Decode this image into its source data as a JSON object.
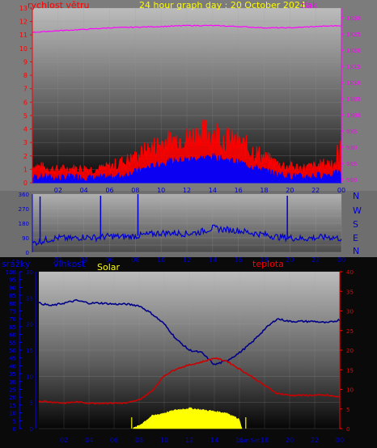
{
  "header": {
    "wind_label": "rychlost větru",
    "title": "24 hour graph day : 20 October 2024",
    "pressure_label": "tlak"
  },
  "lower_labels": {
    "rain": "srážky",
    "humidity": "vlhkost",
    "solar": "Solar",
    "temperature": "teplota"
  },
  "compass": [
    "N",
    "W",
    "S",
    "E",
    "N"
  ],
  "colors": {
    "wind_speed": "#ff0000",
    "wind_avg": "#0000ff",
    "pressure": "#ff00ff",
    "direction": "#0000cc",
    "humidity": "#00008b",
    "temperature": "#cc0000",
    "solar": "#ffff00",
    "text_red": "#ff0000",
    "text_yellow": "#ffff00",
    "text_blue": "#0000ff",
    "text_magenta": "#ff00ff"
  },
  "chart_data": [
    {
      "type": "line",
      "x_ticks": [
        "02",
        "04",
        "06",
        "08",
        "10",
        "12",
        "14",
        "16",
        "18",
        "20",
        "22",
        "00"
      ],
      "x_range": [
        0,
        24
      ],
      "left_axis": {
        "ticks": [
          0,
          1,
          2,
          3,
          4,
          5,
          6,
          7,
          8,
          9,
          10,
          11,
          12,
          13
        ],
        "ylim": [
          0,
          13
        ]
      },
      "right_axis": {
        "ticks": [
          980,
          985,
          990,
          995,
          1000,
          1005,
          1010,
          1015,
          1020,
          1025,
          1030
        ],
        "ylim": [
          979,
          1033
        ]
      },
      "series": [
        {
          "name": "rychlost větru",
          "axis": "left",
          "x": [
            0,
            1,
            2,
            3,
            4,
            5,
            6,
            7,
            8,
            9,
            10,
            11,
            12,
            13,
            14,
            15,
            16,
            17,
            18,
            19,
            20,
            21,
            22,
            23,
            24
          ],
          "y": [
            1.2,
            1.0,
            0.9,
            1.0,
            1.0,
            0.9,
            1.1,
            1.4,
            1.8,
            2.3,
            2.8,
            3.1,
            3.2,
            3.6,
            3.4,
            3.1,
            2.8,
            2.3,
            1.7,
            1.3,
            1.1,
            1.0,
            1.1,
            1.3,
            1.6
          ],
          "gust_max": [
            1.8,
            1.6,
            1.4,
            1.5,
            1.5,
            1.4,
            1.7,
            2.2,
            2.6,
            3.4,
            4.0,
            4.2,
            4.4,
            4.8,
            5.4,
            4.5,
            4.0,
            3.5,
            2.6,
            2.0,
            1.7,
            1.6,
            1.7,
            2.1,
            3.8
          ]
        },
        {
          "name": "",
          "axis": "left",
          "x": [
            0,
            1,
            2,
            3,
            4,
            5,
            6,
            7,
            8,
            9,
            10,
            11,
            12,
            13,
            14,
            15,
            16,
            17,
            18,
            19,
            20,
            21,
            22,
            23,
            24
          ],
          "y": [
            0.4,
            0.4,
            0.3,
            0.4,
            0.4,
            0.3,
            0.4,
            0.5,
            0.8,
            1.1,
            1.4,
            1.6,
            1.7,
            1.8,
            1.9,
            1.7,
            1.5,
            1.2,
            0.9,
            0.6,
            0.5,
            0.4,
            0.5,
            0.6,
            0.7
          ]
        },
        {
          "name": "tlak",
          "axis": "right",
          "x": [
            0,
            2,
            4,
            6,
            8,
            10,
            12,
            14,
            16,
            18,
            20,
            22,
            24
          ],
          "y": [
            1025.5,
            1026.0,
            1026.4,
            1026.9,
            1027.1,
            1027.3,
            1027.6,
            1027.6,
            1027.3,
            1026.9,
            1026.9,
            1027.3,
            1027.6
          ]
        }
      ]
    },
    {
      "type": "line",
      "x_ticks": [
        "02",
        "04",
        "06",
        "08",
        "10",
        "12",
        "14",
        "16",
        "18",
        "20",
        "22",
        "00"
      ],
      "x_range": [
        0,
        24
      ],
      "ylim": [
        0,
        360
      ],
      "y_ticks": [
        0,
        45,
        90,
        135,
        180,
        225,
        270,
        315,
        360
      ],
      "y_tick_labels": [
        "0",
        "",
        "90",
        "",
        "180",
        "",
        "270",
        "",
        "360"
      ],
      "series": [
        {
          "name": "",
          "x": [
            0,
            1,
            2,
            3,
            4,
            5,
            6,
            7,
            8,
            9,
            10,
            11,
            12,
            13,
            14,
            15,
            16,
            17,
            18,
            19,
            20,
            21,
            22,
            23,
            24
          ],
          "y": [
            55,
            75,
            90,
            85,
            95,
            90,
            100,
            95,
            100,
            110,
            120,
            120,
            115,
            125,
            150,
            140,
            135,
            120,
            110,
            95,
            90,
            85,
            90,
            95,
            85
          ],
          "spikes": [
            {
              "x": 0.6,
              "y": 345
            },
            {
              "x": 5.3,
              "y": 350
            },
            {
              "x": 8.2,
              "y": 360
            },
            {
              "x": 19.8,
              "y": 350
            }
          ]
        }
      ]
    },
    {
      "type": "line",
      "x_ticks": [
        "02",
        "04",
        "06",
        "08",
        "10",
        "12",
        "14",
        "16",
        "18",
        "20",
        "22",
        "00"
      ],
      "x_tick_extra": [
        "Sun",
        "Set"
      ],
      "x_range": [
        0,
        24
      ],
      "rain_axis": {
        "ticks": [
          0,
          5,
          10,
          15,
          20,
          25,
          30,
          35,
          40,
          45,
          50,
          55,
          60,
          65,
          70,
          75,
          80,
          85,
          90,
          95,
          100
        ],
        "ylim": [
          0,
          100
        ]
      },
      "humidity_axis": {
        "ticks": [
          0,
          5,
          10,
          15,
          20,
          25,
          30
        ],
        "ylim": [
          0,
          30
        ]
      },
      "temperature_axis": {
        "ticks": [
          0,
          5,
          10,
          15,
          20,
          25,
          30,
          35,
          40
        ],
        "ylim": [
          0,
          40
        ]
      },
      "series": [
        {
          "name": "vlhkost",
          "axis": "humidity",
          "x": [
            0,
            1,
            2,
            3,
            4,
            5,
            6,
            7,
            8,
            9,
            10,
            11,
            12,
            13,
            14,
            15,
            16,
            17,
            18,
            19,
            20,
            21,
            22,
            23,
            24
          ],
          "y": [
            24,
            23.5,
            24,
            24.5,
            24,
            24,
            23.8,
            23.8,
            23.5,
            22,
            20,
            17,
            15,
            14.5,
            12.2,
            13,
            14.5,
            16.5,
            19,
            21,
            20.5,
            20.5,
            20.5,
            20.2,
            20.8
          ]
        },
        {
          "name": "teplota",
          "axis": "temperature",
          "x": [
            0,
            1,
            2,
            3,
            4,
            5,
            6,
            7,
            8,
            9,
            10,
            11,
            12,
            13,
            14,
            15,
            16,
            17,
            18,
            19,
            20,
            21,
            22,
            23,
            24
          ],
          "y": [
            7,
            6.8,
            6.5,
            6.8,
            6.5,
            6.5,
            6.5,
            6.5,
            7.3,
            9.5,
            13.5,
            15.3,
            16.2,
            17.0,
            18.0,
            17.2,
            15.2,
            13.2,
            11.0,
            9.0,
            8.5,
            8.5,
            8.5,
            8.5,
            8.0
          ]
        },
        {
          "name": "Solar",
          "axis": "rain",
          "fill": true,
          "x": [
            7.5,
            8,
            9,
            10,
            11,
            12,
            13,
            14,
            15,
            16,
            16.2
          ],
          "y": [
            0,
            2,
            8,
            10,
            12,
            13,
            12,
            11,
            10,
            6,
            0
          ]
        }
      ],
      "markers": [
        {
          "x": 7.4,
          "label": "sunrise"
        },
        {
          "x": 16.5,
          "label": "sunset"
        }
      ]
    }
  ]
}
